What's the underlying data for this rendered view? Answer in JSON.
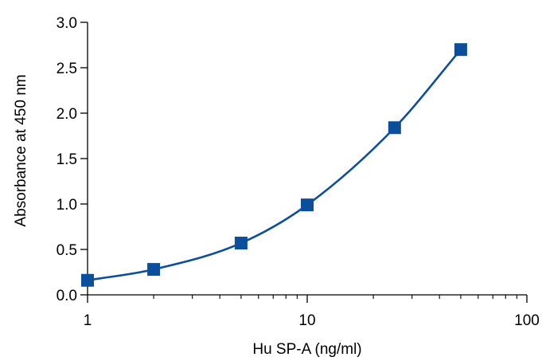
{
  "chart_data": {
    "type": "scatter",
    "title": "",
    "xlabel": "Hu SP-A (ng/ml)",
    "ylabel": "Absorbance at 450 nm",
    "x_scale": "log",
    "xlim": [
      1,
      100
    ],
    "ylim": [
      0,
      3.0
    ],
    "x_ticks": [
      1,
      10,
      100
    ],
    "x_tick_labels": [
      "1",
      "10",
      "100"
    ],
    "y_ticks": [
      0,
      0.5,
      1.0,
      1.5,
      2.0,
      2.5,
      3.0
    ],
    "y_tick_labels": [
      "0.0",
      "0.5",
      "1.0",
      "1.5",
      "2.0",
      "2.5",
      "3.0"
    ],
    "grid": false,
    "legend": "none",
    "series": [
      {
        "marker": "square",
        "line": "fitted-curve",
        "color": "#0b4f9c",
        "x": [
          1,
          2,
          5,
          10,
          25,
          50
        ],
        "y": [
          0.16,
          0.28,
          0.57,
          0.99,
          1.84,
          2.7
        ]
      }
    ]
  }
}
